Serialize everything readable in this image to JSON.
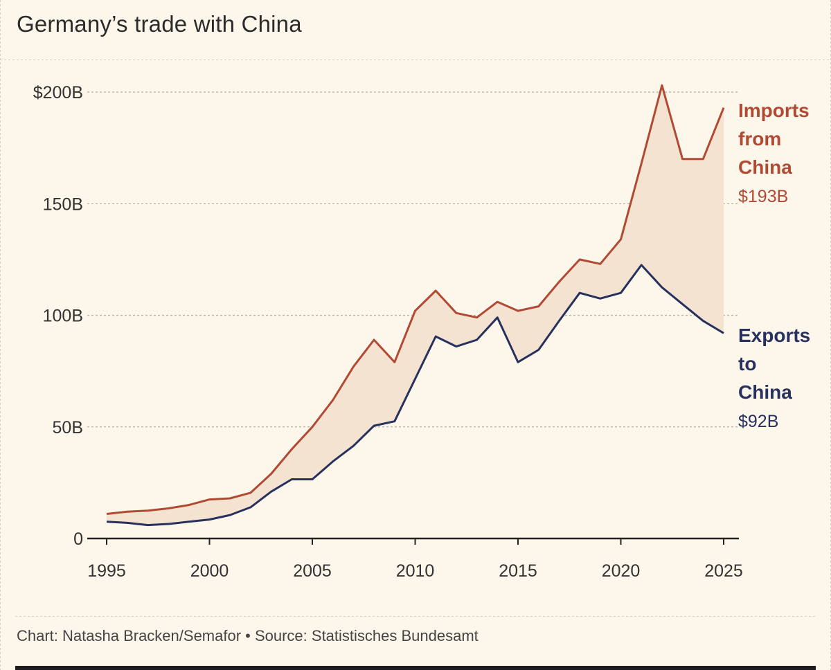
{
  "title": "Germany’s trade with China",
  "credit": "Chart: Natasha Bracken/Semafor • Source: Statistisches Bundesamt",
  "colors": {
    "imports": "#b14a34",
    "exports": "#28305e",
    "fill": "#f4e3d1",
    "grid": "#b9b09c",
    "axis": "#222222"
  },
  "chart_data": {
    "type": "line",
    "x": [
      1995,
      1996,
      1997,
      1998,
      1999,
      2000,
      2001,
      2002,
      2003,
      2004,
      2005,
      2006,
      2007,
      2008,
      2009,
      2010,
      2011,
      2012,
      2013,
      2014,
      2015,
      2016,
      2017,
      2018,
      2019,
      2020,
      2021,
      2022,
      2023,
      2024,
      2025
    ],
    "series": [
      {
        "name": "Imports from China",
        "label_lines": [
          "Imports",
          "from",
          "China"
        ],
        "value_label": "$193B",
        "values": [
          11,
          12,
          12.5,
          13.5,
          15,
          17.5,
          18,
          20.5,
          29,
          40,
          50,
          62,
          77,
          89,
          79,
          102,
          111,
          101,
          99,
          106,
          102,
          104,
          115,
          125,
          123,
          134,
          168,
          203,
          170,
          170,
          193
        ]
      },
      {
        "name": "Exports to China",
        "label_lines": [
          "Exports",
          "to",
          "China"
        ],
        "value_label": "$92B",
        "values": [
          7.5,
          7,
          6,
          6.5,
          7.5,
          8.5,
          10.5,
          14,
          21,
          26.5,
          26.5,
          34.5,
          41.5,
          50.5,
          52.5,
          71.5,
          90.5,
          86,
          89,
          99,
          79,
          84.5,
          97.5,
          110,
          107.5,
          110,
          122.5,
          112.5,
          105,
          97.5,
          92
        ]
      }
    ],
    "y_ticks": [
      {
        "value": 0,
        "label": "0"
      },
      {
        "value": 50,
        "label": "50B"
      },
      {
        "value": 100,
        "label": "100B"
      },
      {
        "value": 150,
        "label": "150B"
      },
      {
        "value": 200,
        "label": "$200B"
      }
    ],
    "x_ticks": [
      1995,
      2000,
      2005,
      2010,
      2015,
      2020,
      2025
    ],
    "xlim": [
      1995,
      2025
    ],
    "ylim": [
      0,
      200
    ],
    "grid": true,
    "legend": "direct labels at right end of lines"
  }
}
